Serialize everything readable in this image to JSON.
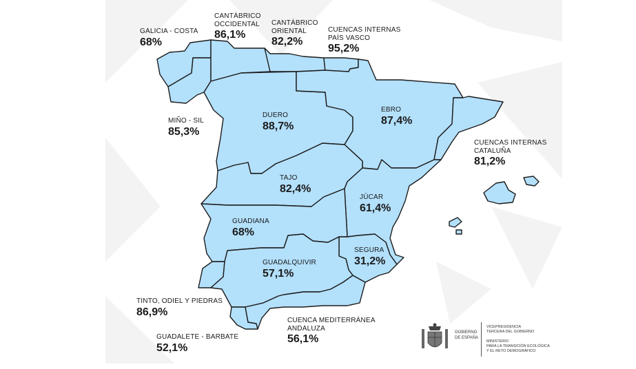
{
  "colors": {
    "region_fill": "#b3e0fb",
    "region_stroke": "#1b1b1b",
    "text": "#1a1a1a"
  },
  "regions": [
    {
      "id": "galicia-costa",
      "name": "GALICIA - COSTA",
      "value": "68%"
    },
    {
      "id": "cantabrico-occidental",
      "name": "CANTÁBRICO\nOCCIDENTAL",
      "value": "86,1%"
    },
    {
      "id": "cantabrico-oriental",
      "name": "CANTÁBRICO\nORIENTAL",
      "value": "82,2%"
    },
    {
      "id": "cuencas-pais-vasco",
      "name": "CUENCAS INTERNAS\nPAÍS VASCO",
      "value": "95,2%"
    },
    {
      "id": "mino-sil",
      "name": "MIÑO - SIL",
      "value": "85,3%"
    },
    {
      "id": "duero",
      "name": "DUERO",
      "value": "88,7%"
    },
    {
      "id": "ebro",
      "name": "EBRO",
      "value": "87,4%"
    },
    {
      "id": "cuencas-cataluna",
      "name": "CUENCAS INTERNAS\nCATALUÑA",
      "value": "81,2%"
    },
    {
      "id": "tajo",
      "name": "TAJO",
      "value": "82,4%"
    },
    {
      "id": "jucar",
      "name": "JÚCAR",
      "value": "61,4%"
    },
    {
      "id": "guadiana",
      "name": "GUADIANA",
      "value": "68%"
    },
    {
      "id": "segura",
      "name": "SEGURA",
      "value": "31,2%"
    },
    {
      "id": "guadalquivir",
      "name": "GUADALQUIVIR",
      "value": "57,1%"
    },
    {
      "id": "tinto-odiel-piedras",
      "name": "TINTO, ODIEL Y PIEDRAS",
      "value": "86,9%"
    },
    {
      "id": "cuenca-mediterranea-andaluza",
      "name": "CUENCA MEDITERRÁNEA\nANDALUZA",
      "value": "56,1%"
    },
    {
      "id": "guadalete-barbate",
      "name": "GUADALETE - BARBATE",
      "value": "52,1%"
    }
  ],
  "logo": {
    "gobierno": "GOBIERNO\nDE ESPAÑA",
    "vicepresidencia": "VICEPRESIDENCIA\nTERCERA DEL GOBIERNO",
    "ministerio": "MINISTERIO\nPARA LA TRANSICIÓN ECOLÓGICA\nY EL RETO DEMOGRÁFICO"
  }
}
